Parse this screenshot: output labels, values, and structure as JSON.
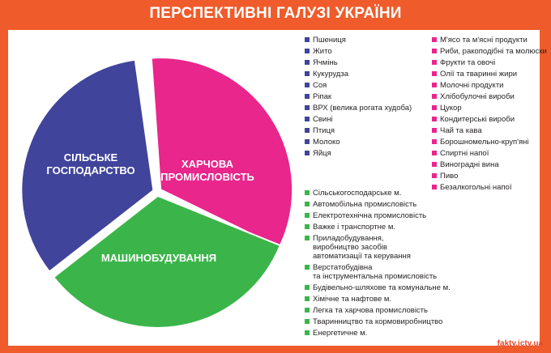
{
  "title": "ПЕРСПЕКТИВНІ ГАЛУЗІ УКРАЇНИ",
  "source": "fakty.ictv.ua",
  "colors": {
    "background": "#ef5b2a",
    "agriculture": "#40449a",
    "food_industry": "#e8268c",
    "machine_building": "#3bb54a"
  },
  "chart_data": {
    "type": "pie",
    "exploded": true,
    "slices": [
      {
        "label": "СІЛЬСЬКЕ\nГОСПОДАРСТВО",
        "value": 33.3,
        "color": "#40449a"
      },
      {
        "label": "ХАРЧОВА\nПРОМИСЛОВІСТЬ",
        "value": 33.3,
        "color": "#e8268c"
      },
      {
        "label": "МАШИНОБУДУВАННЯ",
        "value": 33.3,
        "color": "#3bb54a"
      }
    ]
  },
  "lists": {
    "agriculture": {
      "color": "#40449a",
      "items": [
        "Пшениця",
        "Жито",
        "Ячмінь",
        "Кукурудза",
        "Соя",
        "Ріпак",
        "ВРХ (велика рогата худоба)",
        "Свині",
        "Птиця",
        "Молоко",
        "Яйця"
      ]
    },
    "food_industry": {
      "color": "#e8268c",
      "items": [
        "М'ясо та м'ясні продукти",
        "Риби, ракоподібні та молюски",
        "Фрукти та овочі",
        "Олії та тваринні жири",
        "Молочні продукти",
        "Хлібобулочні вироби",
        "Цукор",
        "Кондитерські вироби",
        "Чай та кава",
        "Борошномельно-круп'яні",
        "Спиртні напої",
        "Виноградні вина",
        "Пиво",
        "Безалкогольні напої"
      ]
    },
    "machine_building": {
      "color": "#3bb54a",
      "items": [
        "Сільськогосподарське м.",
        "Автомобільна промисловість",
        "Електротехнічна промисловість",
        "Важке і транспортне м.",
        "Приладобудування,\nвиробництво засобів\nавтоматизації та керування",
        "Верстатобудівна\nта інструментальна промисловість",
        "Будівельно-шляхове та комунальне м.",
        "Хімічне та нафтове м.",
        "Легка та харчова промисловість",
        "Тваринництво та кормовиробництво",
        "Енергетичне м."
      ]
    }
  }
}
